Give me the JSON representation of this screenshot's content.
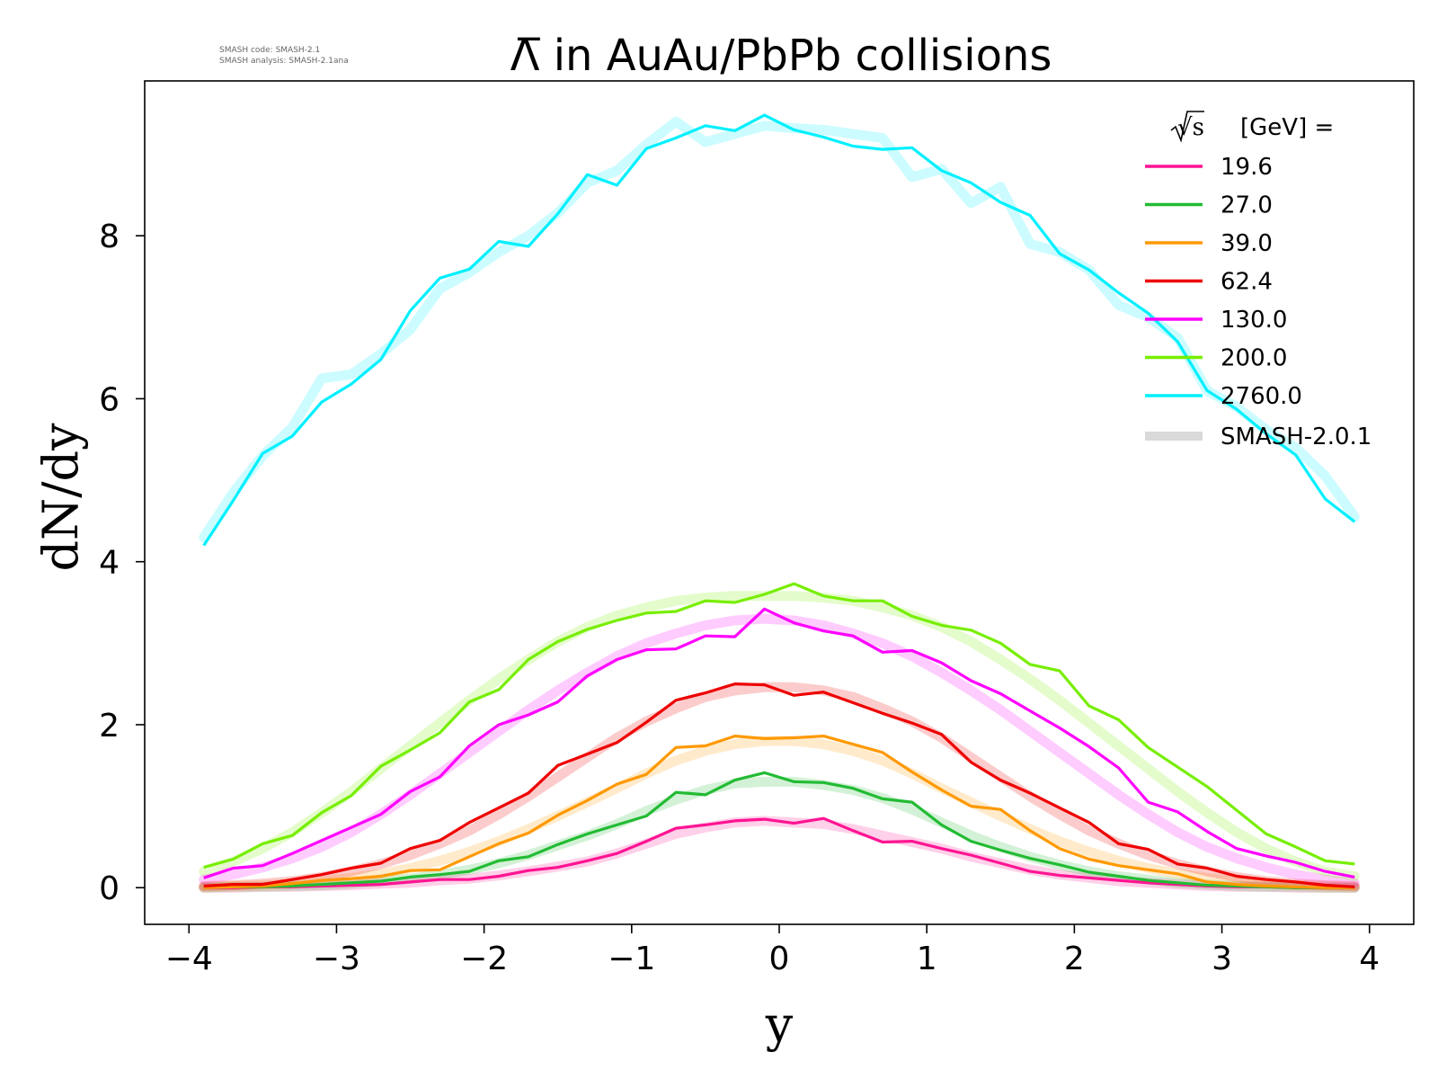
{
  "header": {
    "title": "Λ̅ in AuAu/PbPb collisions",
    "note_line1": "SMASH code:      SMASH-2.1",
    "note_line2": "SMASH analysis: SMASH-2.1ana"
  },
  "chart_data": {
    "type": "line",
    "title": "Λ̅ in AuAu/PbPb collisions",
    "xlabel": "y",
    "ylabel": "dN/dy",
    "xlim": [
      -4.3,
      4.3
    ],
    "ylim": [
      -0.45,
      9.9
    ],
    "xticks": [
      -4,
      -3,
      -2,
      -1,
      0,
      1,
      2,
      3,
      4
    ],
    "xtick_labels": [
      "−4",
      "−3",
      "−2",
      "−1",
      "0",
      "1",
      "2",
      "3",
      "4"
    ],
    "yticks": [
      0,
      2,
      4,
      6,
      8
    ],
    "ytick_labels": [
      "0",
      "2",
      "4",
      "6",
      "8"
    ],
    "grid": false,
    "legend": {
      "placement": "top-right",
      "title_sqrt": "√s",
      "title_rest": "[GeV] =",
      "reference_label": "SMASH-2.0.1",
      "reference_color": "#d9d9d9"
    },
    "x": [
      -3.9,
      -3.7,
      -3.5,
      -3.3,
      -3.1,
      -2.9,
      -2.7,
      -2.5,
      -2.3,
      -2.1,
      -1.9,
      -1.7,
      -1.5,
      -1.3,
      -1.1,
      -0.9,
      -0.7,
      -0.5,
      -0.3,
      -0.1,
      0.1,
      0.3,
      0.5,
      0.7,
      0.9,
      1.1,
      1.3,
      1.5,
      1.7,
      1.9,
      2.1,
      2.3,
      2.5,
      2.7,
      2.9,
      3.1,
      3.3,
      3.5,
      3.7,
      3.9
    ],
    "series": [
      {
        "name": "19.6",
        "color": "#ff1493",
        "values": [
          0.0,
          0.0,
          0.01,
          0.01,
          0.02,
          0.03,
          0.04,
          0.07,
          0.1,
          0.1,
          0.14,
          0.21,
          0.25,
          0.33,
          0.42,
          0.57,
          0.73,
          0.77,
          0.82,
          0.84,
          0.79,
          0.85,
          0.7,
          0.56,
          0.57,
          0.48,
          0.4,
          0.3,
          0.2,
          0.15,
          0.12,
          0.09,
          0.06,
          0.04,
          0.02,
          0.01,
          0.01,
          0.0,
          0.0,
          0.0
        ],
        "reference": [
          0.0,
          0.0,
          0.01,
          0.01,
          0.02,
          0.03,
          0.05,
          0.06,
          0.09,
          0.11,
          0.15,
          0.2,
          0.26,
          0.32,
          0.42,
          0.54,
          0.66,
          0.74,
          0.8,
          0.82,
          0.8,
          0.78,
          0.72,
          0.64,
          0.56,
          0.48,
          0.38,
          0.3,
          0.22,
          0.16,
          0.12,
          0.08,
          0.06,
          0.04,
          0.02,
          0.01,
          0.01,
          0.0,
          0.0,
          0.0
        ]
      },
      {
        "name": "27.0",
        "color": "#22bb33",
        "values": [
          0.0,
          0.01,
          0.01,
          0.02,
          0.04,
          0.06,
          0.08,
          0.13,
          0.16,
          0.2,
          0.33,
          0.38,
          0.53,
          0.66,
          0.77,
          0.88,
          1.17,
          1.14,
          1.32,
          1.41,
          1.3,
          1.29,
          1.22,
          1.09,
          1.05,
          0.77,
          0.57,
          0.46,
          0.36,
          0.28,
          0.19,
          0.14,
          0.09,
          0.06,
          0.03,
          0.02,
          0.01,
          0.0,
          0.0,
          0.0
        ],
        "reference": [
          0.0,
          0.01,
          0.01,
          0.02,
          0.03,
          0.05,
          0.08,
          0.11,
          0.16,
          0.22,
          0.3,
          0.4,
          0.52,
          0.64,
          0.78,
          0.94,
          1.08,
          1.2,
          1.28,
          1.3,
          1.3,
          1.26,
          1.2,
          1.1,
          0.96,
          0.8,
          0.64,
          0.5,
          0.38,
          0.28,
          0.2,
          0.14,
          0.1,
          0.06,
          0.04,
          0.02,
          0.01,
          0.01,
          0.0,
          0.0
        ]
      },
      {
        "name": "39.0",
        "color": "#ff9900",
        "values": [
          0.0,
          0.01,
          0.02,
          0.05,
          0.09,
          0.11,
          0.14,
          0.21,
          0.22,
          0.38,
          0.54,
          0.67,
          0.89,
          1.07,
          1.27,
          1.39,
          1.72,
          1.74,
          1.86,
          1.83,
          1.84,
          1.86,
          1.76,
          1.66,
          1.42,
          1.2,
          1.0,
          0.96,
          0.7,
          0.48,
          0.35,
          0.27,
          0.22,
          0.17,
          0.07,
          0.04,
          0.02,
          0.01,
          0.0,
          0.0
        ],
        "reference": [
          0.01,
          0.02,
          0.03,
          0.05,
          0.08,
          0.12,
          0.17,
          0.24,
          0.33,
          0.44,
          0.57,
          0.72,
          0.88,
          1.05,
          1.22,
          1.4,
          1.56,
          1.68,
          1.76,
          1.8,
          1.8,
          1.76,
          1.68,
          1.56,
          1.4,
          1.22,
          1.05,
          0.88,
          0.72,
          0.57,
          0.44,
          0.33,
          0.24,
          0.17,
          0.12,
          0.08,
          0.05,
          0.03,
          0.02,
          0.01
        ]
      },
      {
        "name": "62.4",
        "color": "#ee0000",
        "values": [
          0.02,
          0.04,
          0.04,
          0.1,
          0.16,
          0.24,
          0.3,
          0.48,
          0.58,
          0.8,
          0.98,
          1.16,
          1.5,
          1.64,
          1.78,
          2.03,
          2.3,
          2.39,
          2.5,
          2.49,
          2.36,
          2.4,
          2.27,
          2.14,
          2.02,
          1.88,
          1.54,
          1.32,
          1.16,
          0.98,
          0.8,
          0.54,
          0.47,
          0.29,
          0.24,
          0.14,
          0.1,
          0.07,
          0.03,
          0.01
        ],
        "reference": [
          0.02,
          0.03,
          0.05,
          0.08,
          0.13,
          0.2,
          0.29,
          0.4,
          0.54,
          0.7,
          0.9,
          1.12,
          1.36,
          1.6,
          1.84,
          2.04,
          2.2,
          2.34,
          2.42,
          2.46,
          2.46,
          2.42,
          2.34,
          2.2,
          2.04,
          1.84,
          1.6,
          1.36,
          1.12,
          0.9,
          0.7,
          0.54,
          0.4,
          0.29,
          0.2,
          0.13,
          0.08,
          0.05,
          0.03,
          0.02
        ]
      },
      {
        "name": "130.0",
        "color": "#ff00ff",
        "values": [
          0.12,
          0.24,
          0.27,
          0.42,
          0.58,
          0.74,
          0.9,
          1.18,
          1.36,
          1.74,
          2.0,
          2.12,
          2.28,
          2.6,
          2.8,
          2.92,
          2.93,
          3.09,
          3.08,
          3.42,
          3.25,
          3.15,
          3.09,
          2.89,
          2.91,
          2.76,
          2.54,
          2.38,
          2.17,
          1.96,
          1.73,
          1.47,
          1.05,
          0.93,
          0.69,
          0.48,
          0.39,
          0.31,
          0.2,
          0.13
        ],
        "reference": [
          0.1,
          0.16,
          0.25,
          0.36,
          0.5,
          0.68,
          0.9,
          1.14,
          1.4,
          1.66,
          1.92,
          2.18,
          2.42,
          2.64,
          2.84,
          3.0,
          3.12,
          3.22,
          3.28,
          3.3,
          3.28,
          3.22,
          3.12,
          3.0,
          2.84,
          2.64,
          2.42,
          2.18,
          1.92,
          1.66,
          1.4,
          1.14,
          0.9,
          0.68,
          0.5,
          0.36,
          0.25,
          0.16,
          0.1,
          0.06
        ]
      },
      {
        "name": "200.0",
        "color": "#77ee00",
        "values": [
          0.25,
          0.35,
          0.54,
          0.64,
          0.92,
          1.13,
          1.49,
          1.69,
          1.9,
          2.28,
          2.43,
          2.8,
          3.02,
          3.17,
          3.28,
          3.37,
          3.39,
          3.52,
          3.5,
          3.6,
          3.73,
          3.58,
          3.52,
          3.52,
          3.33,
          3.22,
          3.16,
          3.0,
          2.74,
          2.66,
          2.23,
          2.06,
          1.72,
          1.48,
          1.24,
          0.95,
          0.66,
          0.5,
          0.33,
          0.29
        ],
        "reference": [
          0.2,
          0.32,
          0.48,
          0.68,
          0.92,
          1.18,
          1.46,
          1.74,
          2.02,
          2.3,
          2.56,
          2.8,
          3.02,
          3.2,
          3.34,
          3.44,
          3.52,
          3.56,
          3.58,
          3.58,
          3.58,
          3.56,
          3.52,
          3.44,
          3.34,
          3.2,
          3.02,
          2.8,
          2.56,
          2.3,
          2.02,
          1.74,
          1.46,
          1.18,
          0.92,
          0.68,
          0.48,
          0.32,
          0.2,
          0.14
        ]
      },
      {
        "name": "2760.0",
        "color": "#00f0ff",
        "values": [
          4.2,
          4.75,
          5.33,
          5.54,
          5.96,
          6.18,
          6.48,
          7.08,
          7.48,
          7.59,
          7.93,
          7.87,
          8.27,
          8.75,
          8.62,
          9.07,
          9.2,
          9.35,
          9.29,
          9.48,
          9.3,
          9.21,
          9.1,
          9.06,
          9.08,
          8.8,
          8.65,
          8.41,
          8.25,
          7.78,
          7.58,
          7.3,
          7.05,
          6.7,
          6.1,
          5.87,
          5.57,
          5.31,
          4.77,
          4.49
        ],
        "reference": [
          4.3,
          4.85,
          5.3,
          5.65,
          6.25,
          6.3,
          6.55,
          6.85,
          7.35,
          7.55,
          7.8,
          8.0,
          8.28,
          8.65,
          8.8,
          9.12,
          9.4,
          9.15,
          9.25,
          9.35,
          9.32,
          9.3,
          9.25,
          9.2,
          8.72,
          8.82,
          8.4,
          8.6,
          7.9,
          7.8,
          7.58,
          7.15,
          7.0,
          6.75,
          6.1,
          5.9,
          5.62,
          5.4,
          5.05,
          4.55
        ]
      }
    ]
  }
}
